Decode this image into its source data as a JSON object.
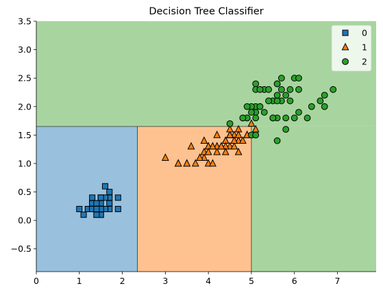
{
  "chart_data": {
    "type": "scatter",
    "title": "Decision Tree Classifier",
    "xlabel": "",
    "ylabel": "",
    "xlim": [
      0,
      7.9
    ],
    "ylim": [
      -0.9,
      3.5
    ],
    "xticks": [
      0,
      1,
      2,
      3,
      4,
      5,
      6,
      7
    ],
    "xtick_labels": [
      "0",
      "1",
      "2",
      "3",
      "4",
      "5",
      "6",
      "7"
    ],
    "yticks": [
      -0.5,
      0.0,
      0.5,
      1.0,
      1.5,
      2.0,
      2.5,
      3.0,
      3.5
    ],
    "ytick_labels": [
      "−0.5",
      "0.0",
      "0.5",
      "1.0",
      "1.5",
      "2.0",
      "2.5",
      "3.0",
      "3.5"
    ],
    "grid": false,
    "legend_position": "top-right",
    "decision_regions": [
      {
        "class": "0",
        "x_range": [
          0,
          2.35
        ],
        "y_range": [
          -0.9,
          1.65
        ],
        "color": "#99c0dd"
      },
      {
        "class": "1",
        "x_range": [
          2.35,
          5.0
        ],
        "y_range": [
          -0.9,
          1.65
        ],
        "color": "#fec290"
      },
      {
        "class": "2",
        "x_range": [
          0,
          7.9
        ],
        "y_range": [
          1.65,
          3.5
        ],
        "color": "#a8d59f"
      },
      {
        "class": "2",
        "x_range": [
          5.0,
          7.9
        ],
        "y_range": [
          -0.9,
          1.65
        ],
        "color": "#a8d59f"
      }
    ],
    "boundaries": [
      {
        "from": [
          0,
          1.65
        ],
        "to": [
          5.0,
          1.65
        ]
      },
      {
        "from": [
          2.35,
          -0.9
        ],
        "to": [
          2.35,
          1.65
        ]
      },
      {
        "from": [
          5.0,
          -0.9
        ],
        "to": [
          5.0,
          1.65
        ]
      }
    ],
    "series": [
      {
        "name": "0",
        "marker": "square",
        "color": "#1f77b4",
        "points": [
          [
            1.4,
            0.2
          ],
          [
            1.4,
            0.2
          ],
          [
            1.3,
            0.2
          ],
          [
            1.5,
            0.2
          ],
          [
            1.4,
            0.2
          ],
          [
            1.7,
            0.4
          ],
          [
            1.4,
            0.3
          ],
          [
            1.5,
            0.2
          ],
          [
            1.4,
            0.2
          ],
          [
            1.5,
            0.1
          ],
          [
            1.5,
            0.2
          ],
          [
            1.6,
            0.2
          ],
          [
            1.4,
            0.1
          ],
          [
            1.1,
            0.1
          ],
          [
            1.2,
            0.2
          ],
          [
            1.5,
            0.4
          ],
          [
            1.3,
            0.4
          ],
          [
            1.4,
            0.3
          ],
          [
            1.7,
            0.3
          ],
          [
            1.5,
            0.3
          ],
          [
            1.7,
            0.2
          ],
          [
            1.5,
            0.4
          ],
          [
            1.0,
            0.2
          ],
          [
            1.7,
            0.5
          ],
          [
            1.9,
            0.2
          ],
          [
            1.6,
            0.2
          ],
          [
            1.6,
            0.4
          ],
          [
            1.5,
            0.2
          ],
          [
            1.4,
            0.2
          ],
          [
            1.6,
            0.2
          ],
          [
            1.6,
            0.2
          ],
          [
            1.5,
            0.4
          ],
          [
            1.5,
            0.1
          ],
          [
            1.4,
            0.2
          ],
          [
            1.5,
            0.2
          ],
          [
            1.2,
            0.2
          ],
          [
            1.3,
            0.2
          ],
          [
            1.4,
            0.1
          ],
          [
            1.3,
            0.2
          ],
          [
            1.5,
            0.2
          ],
          [
            1.3,
            0.3
          ],
          [
            1.3,
            0.3
          ],
          [
            1.3,
            0.2
          ],
          [
            1.6,
            0.6
          ],
          [
            1.9,
            0.4
          ],
          [
            1.4,
            0.3
          ],
          [
            1.6,
            0.2
          ],
          [
            1.4,
            0.2
          ],
          [
            1.5,
            0.2
          ],
          [
            1.4,
            0.2
          ]
        ]
      },
      {
        "name": "1",
        "marker": "triangle",
        "color": "#ff7f0e",
        "points": [
          [
            4.7,
            1.4
          ],
          [
            4.5,
            1.5
          ],
          [
            4.9,
            1.5
          ],
          [
            4.0,
            1.3
          ],
          [
            4.6,
            1.5
          ],
          [
            4.5,
            1.3
          ],
          [
            4.7,
            1.6
          ],
          [
            3.3,
            1.0
          ],
          [
            4.6,
            1.3
          ],
          [
            3.9,
            1.4
          ],
          [
            3.5,
            1.0
          ],
          [
            4.2,
            1.5
          ],
          [
            4.0,
            1.0
          ],
          [
            4.7,
            1.4
          ],
          [
            3.6,
            1.3
          ],
          [
            4.4,
            1.4
          ],
          [
            4.5,
            1.5
          ],
          [
            4.1,
            1.0
          ],
          [
            4.5,
            1.5
          ],
          [
            3.9,
            1.1
          ],
          [
            4.0,
            1.3
          ],
          [
            4.9,
            1.5
          ],
          [
            4.7,
            1.2
          ],
          [
            4.3,
            1.3
          ],
          [
            4.4,
            1.4
          ],
          [
            4.8,
            1.4
          ],
          [
            5.0,
            1.7
          ],
          [
            4.5,
            1.5
          ],
          [
            3.5,
            1.0
          ],
          [
            3.8,
            1.1
          ],
          [
            3.7,
            1.0
          ],
          [
            3.9,
            1.2
          ],
          [
            5.1,
            1.6
          ],
          [
            4.5,
            1.5
          ],
          [
            4.5,
            1.6
          ],
          [
            4.7,
            1.5
          ],
          [
            4.4,
            1.3
          ],
          [
            4.1,
            1.3
          ],
          [
            4.0,
            1.3
          ],
          [
            4.4,
            1.2
          ],
          [
            4.6,
            1.4
          ],
          [
            4.0,
            1.2
          ],
          [
            3.3,
            1.0
          ],
          [
            4.2,
            1.3
          ],
          [
            4.2,
            1.2
          ],
          [
            4.2,
            1.3
          ],
          [
            4.3,
            1.3
          ],
          [
            3.0,
            1.1
          ],
          [
            4.1,
            1.3
          ]
        ]
      },
      {
        "name": "2",
        "marker": "circle",
        "color": "#2ca02c",
        "points": [
          [
            6.0,
            2.5
          ],
          [
            5.1,
            1.9
          ],
          [
            5.9,
            2.1
          ],
          [
            5.6,
            1.8
          ],
          [
            5.8,
            2.2
          ],
          [
            6.6,
            2.1
          ],
          [
            4.5,
            1.7
          ],
          [
            6.3,
            1.8
          ],
          [
            5.8,
            1.8
          ],
          [
            6.1,
            2.5
          ],
          [
            5.1,
            2.0
          ],
          [
            5.3,
            1.9
          ],
          [
            5.5,
            2.1
          ],
          [
            5.0,
            2.0
          ],
          [
            5.1,
            2.4
          ],
          [
            5.3,
            2.3
          ],
          [
            5.5,
            1.8
          ],
          [
            6.7,
            2.2
          ],
          [
            6.9,
            2.3
          ],
          [
            5.0,
            1.5
          ],
          [
            5.7,
            2.3
          ],
          [
            4.9,
            2.0
          ],
          [
            6.7,
            2.0
          ],
          [
            4.9,
            1.8
          ],
          [
            5.7,
            2.1
          ],
          [
            6.0,
            1.8
          ],
          [
            4.8,
            1.8
          ],
          [
            4.9,
            1.8
          ],
          [
            5.6,
            2.1
          ],
          [
            5.8,
            1.6
          ],
          [
            6.1,
            1.9
          ],
          [
            6.4,
            2.0
          ],
          [
            5.6,
            2.2
          ],
          [
            5.1,
            1.5
          ],
          [
            5.6,
            1.4
          ],
          [
            6.1,
            2.3
          ],
          [
            5.6,
            2.4
          ],
          [
            5.5,
            1.8
          ],
          [
            4.8,
            1.8
          ],
          [
            5.4,
            2.1
          ],
          [
            5.6,
            2.4
          ],
          [
            5.1,
            2.3
          ],
          [
            5.9,
            2.3
          ],
          [
            5.7,
            2.5
          ],
          [
            5.2,
            2.3
          ],
          [
            5.0,
            1.9
          ],
          [
            5.2,
            2.0
          ],
          [
            5.4,
            2.3
          ],
          [
            5.1,
            1.8
          ]
        ]
      }
    ],
    "colors": {
      "region_0": "#99c0dd",
      "region_1": "#fec290",
      "region_2": "#a8d59f",
      "class_0": "#1f77b4",
      "class_1": "#ff7f0e",
      "class_2": "#2ca02c"
    }
  }
}
